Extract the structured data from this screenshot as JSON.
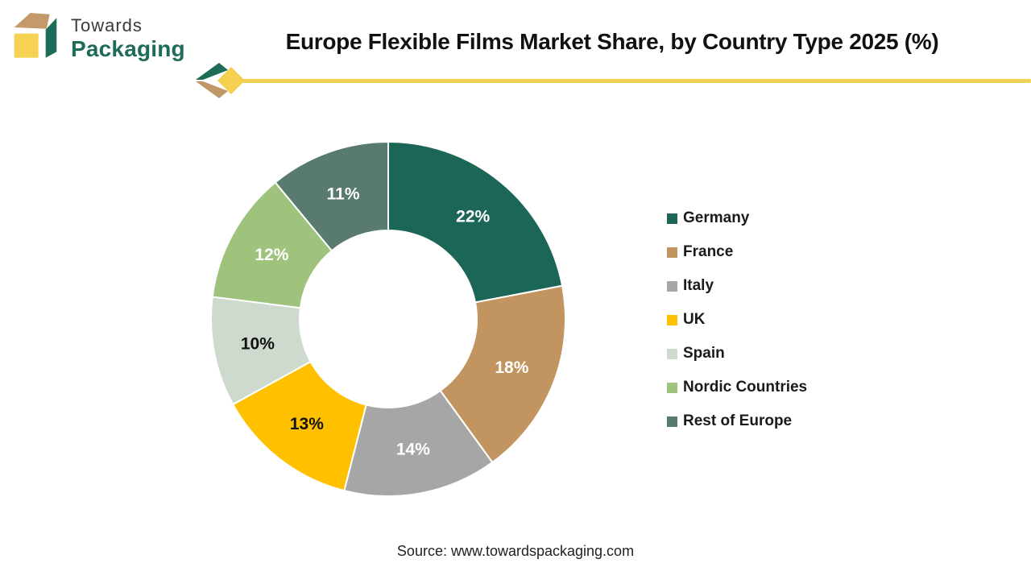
{
  "brand": {
    "name_line1": "Towards",
    "name_line2": "Packaging",
    "colors": {
      "cube_top": "#C49A6B",
      "cube_right": "#1E6B58",
      "cube_front": "#F6D254",
      "name_line2_color": "#1F6B5A"
    }
  },
  "header": {
    "title": "Europe Flexible Films Market Share, by Country Type 2025 (%)",
    "accent_line_color": "#EFD255",
    "deco_green": "#1E6B58",
    "deco_tan": "#BF9768",
    "deco_yellow": "#F5D04E"
  },
  "chart_data": {
    "type": "pie",
    "variant": "donut",
    "title": "Europe Flexible Films Market Share, by Country Type 2025 (%)",
    "unit": "%",
    "start_angle_deg": 0,
    "direction": "clockwise",
    "inner_radius_ratio": 0.5,
    "legend_position": "right",
    "categories": [
      "Germany",
      "France",
      "Italy",
      "UK",
      "Spain",
      "Nordic Countries",
      "Rest of Europe"
    ],
    "values": [
      22,
      18,
      14,
      13,
      10,
      12,
      11
    ],
    "slices": [
      {
        "id": "germany",
        "name": "Germany",
        "value": 22,
        "display_label": "22%",
        "color": "#1B6657",
        "label_color": "#FFFFFF"
      },
      {
        "id": "france",
        "name": "France",
        "value": 18,
        "display_label": "18%",
        "color": "#C29560",
        "label_color": "#FFFFFF"
      },
      {
        "id": "italy",
        "name": "Italy",
        "value": 14,
        "display_label": "14%",
        "color": "#A6A6A6",
        "label_color": "#FFFFFF"
      },
      {
        "id": "uk",
        "name": "UK",
        "value": 13,
        "display_label": "13%",
        "color": "#FFC000",
        "label_color": "#111111"
      },
      {
        "id": "spain",
        "name": "Spain",
        "value": 10,
        "display_label": "10%",
        "color": "#CEDACE",
        "label_color": "#111111"
      },
      {
        "id": "nordic-countries",
        "name": "Nordic Countries",
        "value": 12,
        "display_label": "12%",
        "color": "#9FC37D",
        "label_color": "#FFFFFF"
      },
      {
        "id": "rest-of-europe",
        "name": "Rest of Europe",
        "value": 11,
        "display_label": "11%",
        "color": "#597A6E",
        "label_color": "#FFFFFF"
      }
    ]
  },
  "footer": {
    "source": "Source: www.towardspackaging.com"
  }
}
